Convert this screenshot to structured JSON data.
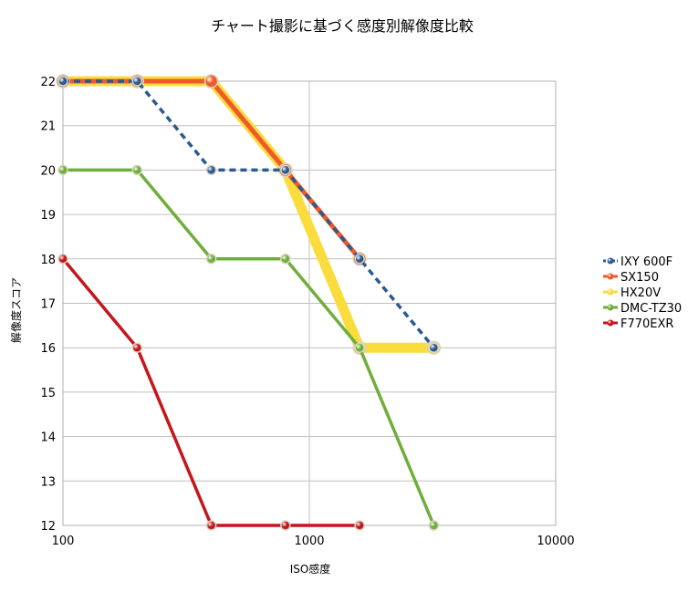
{
  "chart_data": {
    "type": "line",
    "title": "チャート撮影に基づく感度別解像度比較",
    "xlabel": "ISO感度",
    "ylabel": "解像度スコア",
    "x_scale": "log",
    "xlim": [
      100,
      10000
    ],
    "ylim": [
      12,
      22
    ],
    "x_ticks": [
      100,
      1000,
      10000
    ],
    "x_tick_labels": [
      "100",
      "1000",
      "10000"
    ],
    "y_ticks": [
      12,
      13,
      14,
      15,
      16,
      17,
      18,
      19,
      20,
      21,
      22
    ],
    "y_tick_labels": [
      "12",
      "13",
      "14",
      "15",
      "16",
      "17",
      "18",
      "19",
      "20",
      "21",
      "22"
    ],
    "grid": true,
    "legend_position": "right",
    "series": [
      {
        "name": "IXY 600F",
        "color": "#2a5a92",
        "line_style": "dashed",
        "x": [
          100,
          200,
          400,
          800,
          1600,
          3200
        ],
        "y": [
          22,
          22,
          20,
          20,
          18,
          16
        ]
      },
      {
        "name": "SX150",
        "color": "#f05a28",
        "line_style": "solid",
        "x": [
          100,
          200,
          400,
          800,
          1600
        ],
        "y": [
          22,
          22,
          22,
          20,
          18
        ]
      },
      {
        "name": "HX20V",
        "color": "#fadc3c",
        "line_style": "solid",
        "x": [
          100,
          200,
          400,
          800,
          1600,
          3200
        ],
        "y": [
          22,
          22,
          22,
          20,
          16,
          16
        ]
      },
      {
        "name": "DMC-TZ30",
        "color": "#6fae3a",
        "line_style": "solid",
        "x": [
          100,
          200,
          400,
          800,
          1600,
          3200
        ],
        "y": [
          20,
          20,
          18,
          18,
          16,
          12
        ]
      },
      {
        "name": "F770EXR",
        "color": "#c4161c",
        "line_style": "solid",
        "x": [
          100,
          200,
          400,
          800,
          1600
        ],
        "y": [
          18,
          16,
          12,
          12,
          12
        ]
      }
    ]
  }
}
